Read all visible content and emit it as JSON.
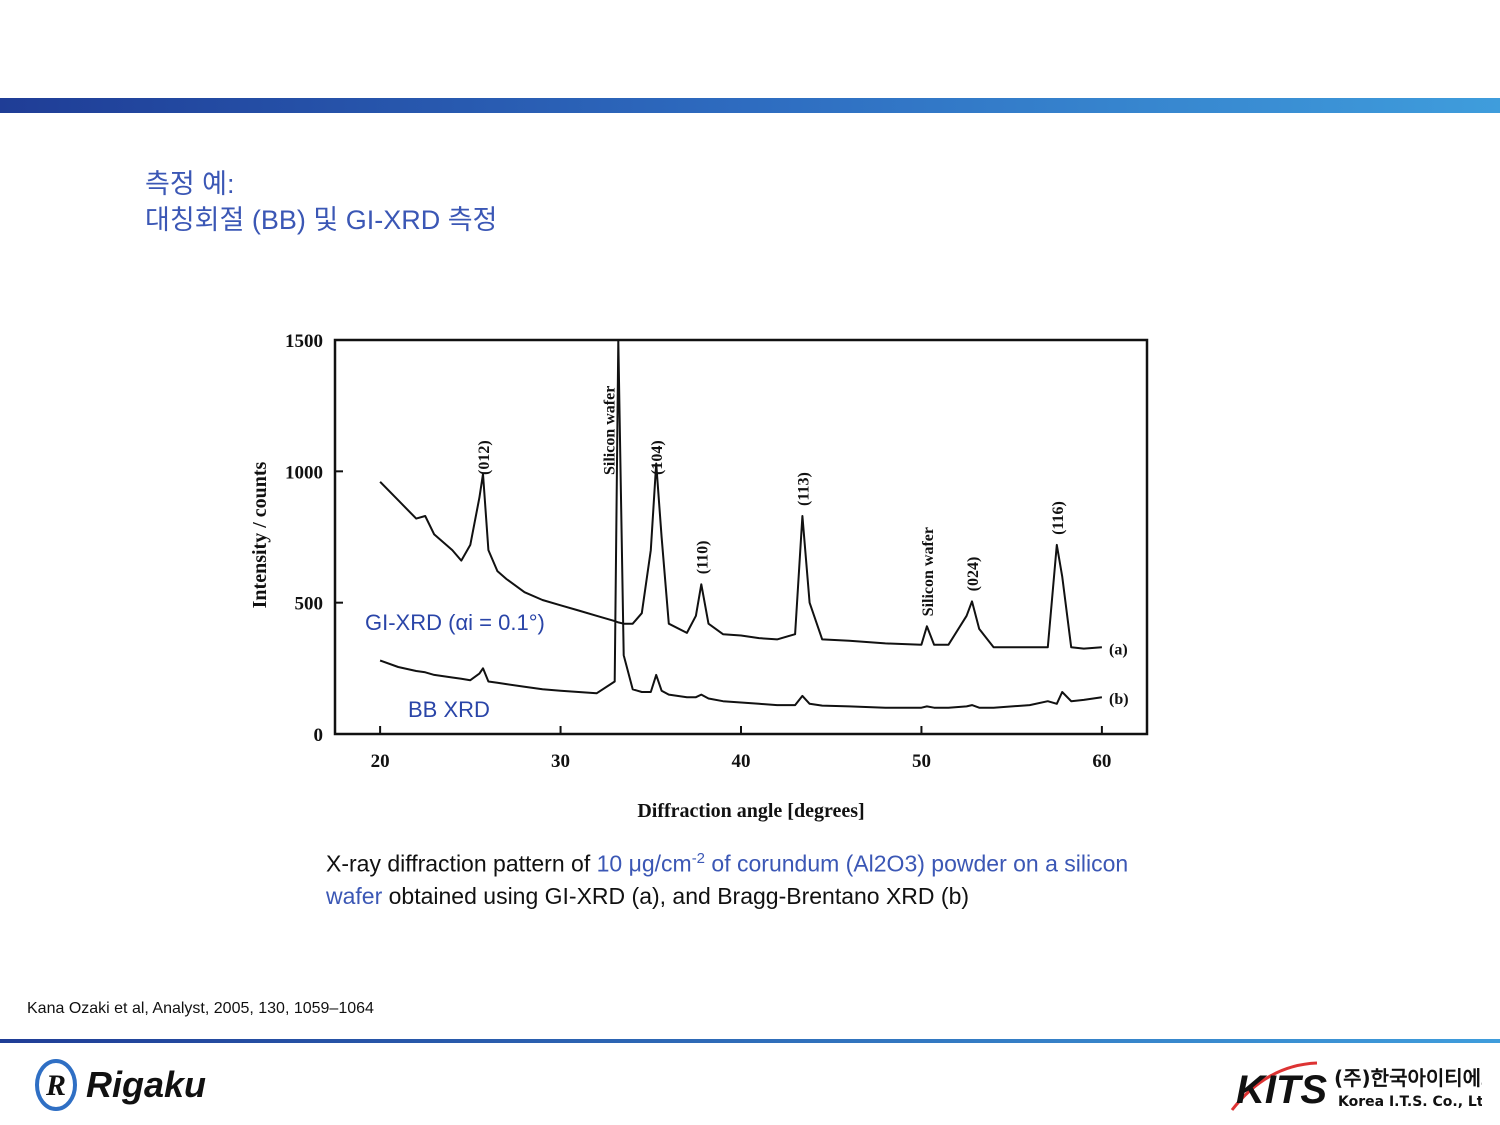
{
  "header": {
    "title_line1": "측정 예:",
    "title_line2": "대칭회절 (BB) 및 GI-XRD 측정"
  },
  "figure": {
    "type": "line",
    "xlabel": "Diffraction angle [degrees]",
    "ylabel": "Intensity / counts",
    "xlim": [
      17.5,
      62.5
    ],
    "ylim": [
      0,
      1500
    ],
    "xticks": [
      20,
      30,
      40,
      50,
      60
    ],
    "yticks": [
      0,
      500,
      1000,
      1500
    ],
    "x": [
      20,
      21,
      22,
      22.5,
      23,
      24,
      24.5,
      25,
      25.5,
      25.7,
      26,
      26.5,
      27,
      28,
      29,
      30,
      31,
      32,
      33,
      33.2,
      33.5,
      34,
      34.5,
      35,
      35.3,
      35.6,
      36,
      37,
      37.5,
      37.8,
      38.2,
      39,
      40,
      41,
      42,
      43,
      43.4,
      43.8,
      44.5,
      46,
      48,
      50,
      50.3,
      50.7,
      51.5,
      52.5,
      52.8,
      53.2,
      54,
      56,
      57,
      57.5,
      57.8,
      58.3,
      59,
      60
    ],
    "series": [
      {
        "name": "(a)",
        "label": "GI-XRD (αi = 0.1°)",
        "color": "#111111",
        "values": [
          960,
          890,
          820,
          830,
          760,
          700,
          660,
          720,
          900,
          990,
          700,
          620,
          590,
          540,
          510,
          490,
          470,
          450,
          430,
          425,
          420,
          420,
          460,
          700,
          1030,
          750,
          420,
          385,
          450,
          570,
          420,
          380,
          375,
          365,
          360,
          380,
          830,
          500,
          360,
          355,
          345,
          340,
          410,
          340,
          340,
          450,
          505,
          400,
          330,
          330,
          330,
          720,
          600,
          330,
          325,
          330
        ]
      },
      {
        "name": "(b)",
        "label": "BB XRD",
        "color": "#111111",
        "values": [
          280,
          255,
          240,
          235,
          225,
          215,
          210,
          205,
          230,
          250,
          200,
          195,
          190,
          180,
          170,
          165,
          160,
          155,
          200,
          1500,
          300,
          170,
          160,
          160,
          225,
          165,
          150,
          140,
          140,
          150,
          135,
          125,
          120,
          115,
          110,
          110,
          145,
          115,
          108,
          105,
          100,
          100,
          105,
          100,
          100,
          105,
          110,
          100,
          100,
          110,
          125,
          115,
          160,
          125,
          130,
          140
        ]
      }
    ],
    "annotations": [
      {
        "text": "(012)",
        "x": 25.7
      },
      {
        "text": "Silicon wafer",
        "x": 33.2
      },
      {
        "text": "(104)",
        "x": 35.3
      },
      {
        "text": "(110)",
        "x": 37.8
      },
      {
        "text": "(113)",
        "x": 43.4
      },
      {
        "text": "Silicon wafer",
        "x": 50.3
      },
      {
        "text": "(024)",
        "x": 52.8
      },
      {
        "text": "(116)",
        "x": 57.5
      }
    ]
  },
  "caption": {
    "p1": "X-ray diffraction pattern of ",
    "p2": "10 μg/cm",
    "p3": "-2",
    "p4": " of corundum (Al2O3) powder on a silicon wafer",
    "p5": " obtained using GI-XRD (a), and Bragg-Brentano XRD (b)"
  },
  "citation": "Kana Ozaki et al, Analyst, 2005, 130, 1059–1064",
  "footer": {
    "left_logo": "Rigaku",
    "right_logo": "KITS",
    "company_kr": "(주)한국아이티에스",
    "company_en": "Korea I.T.S. Co., Ltd."
  }
}
